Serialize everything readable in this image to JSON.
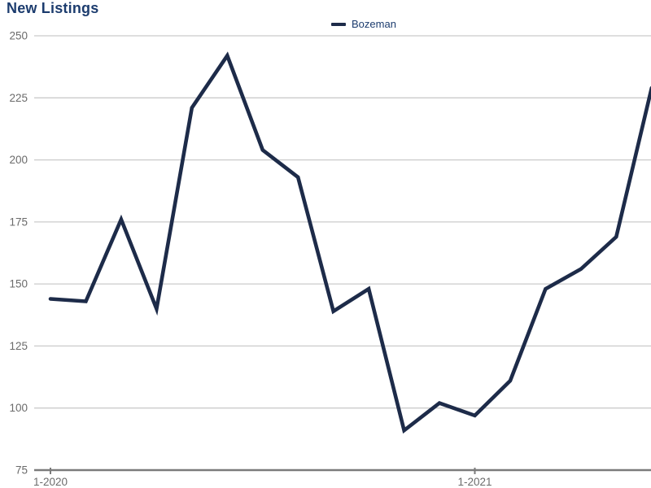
{
  "title": "New Listings",
  "legend": {
    "items": [
      {
        "label": "Bozeman"
      }
    ]
  },
  "colors": {
    "background": "#ffffff",
    "title_text": "#1c3c6e",
    "legend_text": "#1c3c6e",
    "series_line": "#1d2b49",
    "axis_label_text": "#6b6b6b",
    "gridline": "#cbcbcb",
    "axis_line": "#7b7b7b"
  },
  "chart_data": {
    "type": "line",
    "title": "New Listings",
    "x": [
      "1-2020",
      "2-2020",
      "3-2020",
      "4-2020",
      "5-2020",
      "6-2020",
      "7-2020",
      "8-2020",
      "9-2020",
      "10-2020",
      "11-2020",
      "12-2020",
      "1-2021",
      "2-2021",
      "3-2021",
      "4-2021",
      "5-2021",
      "6-2021"
    ],
    "series": [
      {
        "name": "Bozeman",
        "color": "#1d2b49",
        "values": [
          144,
          143,
          176,
          140,
          221,
          242,
          204,
          193,
          139,
          148,
          91,
          102,
          97,
          111,
          148,
          156,
          169,
          229
        ]
      }
    ],
    "visible_x_tick_labels": [
      "1-2020",
      "1-2021"
    ],
    "y_ticks": [
      75,
      100,
      125,
      150,
      175,
      200,
      225,
      250
    ],
    "ylim": [
      75,
      250
    ],
    "xlabel": "",
    "ylabel": "",
    "grid": "horizontal",
    "legend_position": "top-center"
  }
}
